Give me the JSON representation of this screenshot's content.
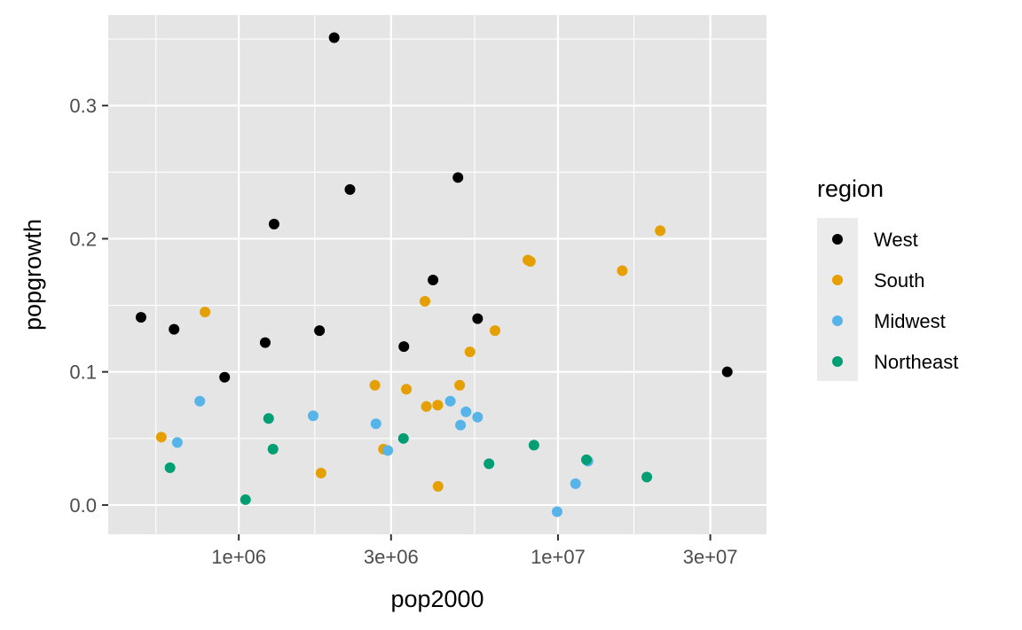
{
  "chart_data": {
    "type": "scatter",
    "xlabel": "pop2000",
    "ylabel": "popgrowth",
    "x_scale": "log10",
    "xlim": [
      390000,
      45000000
    ],
    "ylim": [
      -0.022,
      0.368
    ],
    "x_ticks": [
      {
        "value": 1000000,
        "label": "1e+06"
      },
      {
        "value": 3000000,
        "label": "3e+06"
      },
      {
        "value": 10000000,
        "label": "1e+07"
      },
      {
        "value": 30000000,
        "label": "3e+07"
      }
    ],
    "x_minor_ticks": [
      550000,
      1730000,
      5480000,
      17300000
    ],
    "y_ticks": [
      {
        "value": 0.0,
        "label": "0.0"
      },
      {
        "value": 0.1,
        "label": "0.1"
      },
      {
        "value": 0.2,
        "label": "0.2"
      },
      {
        "value": 0.3,
        "label": "0.3"
      }
    ],
    "y_minor_ticks": [
      0.05,
      0.15,
      0.25,
      0.35
    ],
    "grid": true,
    "panel_background": "#E5E5E5",
    "grid_color": "#FFFFFF",
    "legend": {
      "title": "region",
      "position": "right",
      "key_background": "#EBEBEB"
    },
    "series": [
      {
        "name": "West",
        "color": "#000000",
        "points": [
          {
            "x": 494000,
            "y": 0.141
          },
          {
            "x": 627000,
            "y": 0.132
          },
          {
            "x": 903000,
            "y": 0.096
          },
          {
            "x": 1210000,
            "y": 0.122
          },
          {
            "x": 1290000,
            "y": 0.211
          },
          {
            "x": 1790000,
            "y": 0.131
          },
          {
            "x": 1990000,
            "y": 0.351
          },
          {
            "x": 2230000,
            "y": 0.237
          },
          {
            "x": 3290000,
            "y": 0.119
          },
          {
            "x": 4060000,
            "y": 0.169
          },
          {
            "x": 4860000,
            "y": 0.246
          },
          {
            "x": 5600000,
            "y": 0.14
          },
          {
            "x": 33900000,
            "y": 0.1
          }
        ]
      },
      {
        "name": "South",
        "color": "#E69F00",
        "points": [
          {
            "x": 572000,
            "y": 0.051
          },
          {
            "x": 784000,
            "y": 0.145
          },
          {
            "x": 1810000,
            "y": 0.024
          },
          {
            "x": 2670000,
            "y": 0.09
          },
          {
            "x": 2840000,
            "y": 0.042
          },
          {
            "x": 3350000,
            "y": 0.087
          },
          {
            "x": 3830000,
            "y": 0.153
          },
          {
            "x": 3870000,
            "y": 0.074
          },
          {
            "x": 4200000,
            "y": 0.075
          },
          {
            "x": 4210000,
            "y": 0.014
          },
          {
            "x": 4920000,
            "y": 0.09
          },
          {
            "x": 5300000,
            "y": 0.115
          },
          {
            "x": 6350000,
            "y": 0.131
          },
          {
            "x": 8050000,
            "y": 0.184
          },
          {
            "x": 8190000,
            "y": 0.183
          },
          {
            "x": 15900000,
            "y": 0.176
          },
          {
            "x": 20900000,
            "y": 0.206
          }
        ]
      },
      {
        "name": "Midwest",
        "color": "#56B4E9",
        "points": [
          {
            "x": 642000,
            "y": 0.047
          },
          {
            "x": 755000,
            "y": 0.078
          },
          {
            "x": 1710000,
            "y": 0.067
          },
          {
            "x": 2690000,
            "y": 0.061
          },
          {
            "x": 2930000,
            "y": 0.041
          },
          {
            "x": 4600000,
            "y": 0.078
          },
          {
            "x": 4950000,
            "y": 0.06
          },
          {
            "x": 5150000,
            "y": 0.07
          },
          {
            "x": 5600000,
            "y": 0.066
          },
          {
            "x": 9940000,
            "y": -0.005
          },
          {
            "x": 11350000,
            "y": 0.016
          },
          {
            "x": 12420000,
            "y": 0.033
          }
        ]
      },
      {
        "name": "Northeast",
        "color": "#009E73",
        "points": [
          {
            "x": 609000,
            "y": 0.028
          },
          {
            "x": 1050000,
            "y": 0.004
          },
          {
            "x": 1240000,
            "y": 0.065
          },
          {
            "x": 1280000,
            "y": 0.042
          },
          {
            "x": 3280000,
            "y": 0.05
          },
          {
            "x": 6080000,
            "y": 0.031
          },
          {
            "x": 8410000,
            "y": 0.045
          },
          {
            "x": 12280000,
            "y": 0.034
          },
          {
            "x": 18980000,
            "y": 0.021
          }
        ]
      }
    ]
  }
}
